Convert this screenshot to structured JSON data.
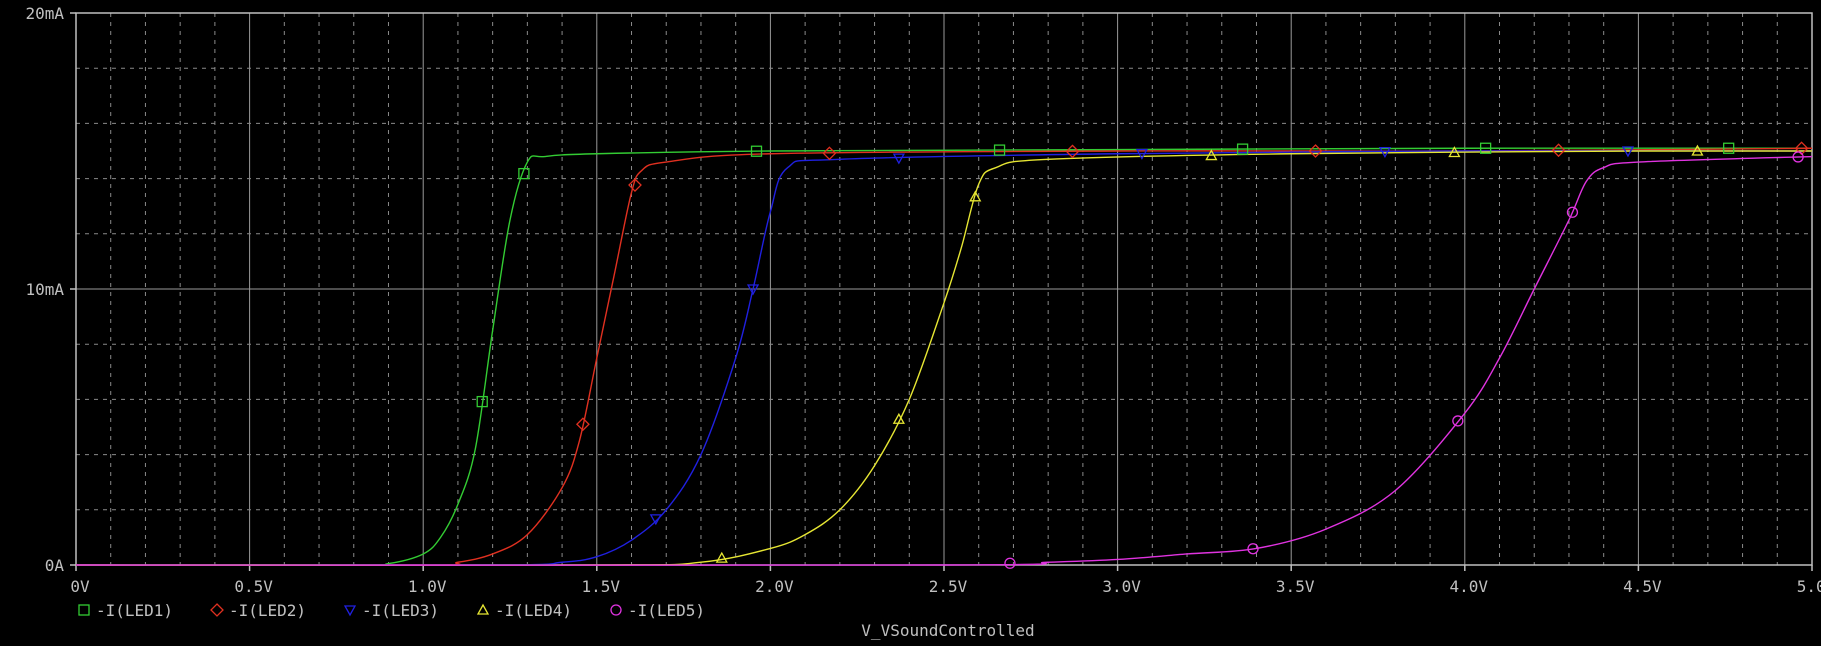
{
  "chart_data": {
    "type": "line",
    "title": "",
    "xlabel": "V_VSoundControlled",
    "ylabel": "",
    "xlim": [
      0,
      5.0
    ],
    "ylim": [
      0,
      20
    ],
    "grid": true,
    "legend_position": "bottom-left",
    "x_ticks": [
      {
        "v": 0,
        "label": "0V"
      },
      {
        "v": 0.5,
        "label": "0.5V"
      },
      {
        "v": 1.0,
        "label": "1.0V"
      },
      {
        "v": 1.5,
        "label": "1.5V"
      },
      {
        "v": 2.0,
        "label": "2.0V"
      },
      {
        "v": 2.5,
        "label": "2.5V"
      },
      {
        "v": 3.0,
        "label": "3.0V"
      },
      {
        "v": 3.5,
        "label": "3.5V"
      },
      {
        "v": 4.0,
        "label": "4.0V"
      },
      {
        "v": 4.5,
        "label": "4.5V"
      },
      {
        "v": 5.0,
        "label": "5.0V"
      }
    ],
    "y_ticks": [
      {
        "v": 0,
        "label": "0A"
      },
      {
        "v": 10,
        "label": "10mA"
      },
      {
        "v": 20,
        "label": "20mA"
      }
    ],
    "series": [
      {
        "name": "-I(LED1)",
        "color": "#33cc33",
        "marker": "square",
        "x": [
          0.0,
          0.8,
          0.9,
          1.0,
          1.05,
          1.1,
          1.15,
          1.2,
          1.25,
          1.3,
          1.35,
          1.5,
          2.0,
          3.0,
          4.0,
          5.0
        ],
        "y": [
          0.0,
          0.0,
          0.05,
          0.4,
          1.0,
          2.2,
          4.2,
          8.5,
          12.5,
          14.6,
          14.8,
          14.9,
          15.0,
          15.05,
          15.1,
          15.1
        ],
        "markers_x": [
          1.17,
          1.29,
          1.96,
          2.66,
          3.36,
          4.06,
          4.76
        ]
      },
      {
        "name": "-I(LED2)",
        "color": "#e03020",
        "marker": "diamond",
        "x": [
          0.0,
          1.0,
          1.1,
          1.2,
          1.3,
          1.4,
          1.45,
          1.5,
          1.55,
          1.6,
          1.63,
          1.7,
          2.0,
          3.0,
          4.0,
          5.0
        ],
        "y": [
          0.0,
          0.0,
          0.1,
          0.4,
          1.1,
          2.8,
          4.5,
          7.5,
          10.5,
          13.5,
          14.3,
          14.6,
          14.9,
          15.0,
          15.0,
          15.1
        ],
        "markers_x": [
          1.46,
          1.61,
          2.17,
          2.87,
          3.57,
          4.27,
          4.97
        ]
      },
      {
        "name": "-I(LED3)",
        "color": "#2020e0",
        "marker": "triangle-down",
        "x": [
          0.0,
          1.2,
          1.4,
          1.5,
          1.6,
          1.7,
          1.8,
          1.9,
          1.95,
          2.0,
          2.05,
          2.2,
          3.0,
          4.0,
          5.0
        ],
        "y": [
          0.0,
          0.0,
          0.1,
          0.3,
          0.9,
          2.0,
          4.0,
          7.5,
          10.0,
          12.8,
          14.4,
          14.7,
          14.9,
          15.0,
          15.0
        ],
        "markers_x": [
          1.67,
          1.95,
          2.37,
          3.07,
          3.77,
          4.47
        ]
      },
      {
        "name": "-I(LED4)",
        "color": "#e6e633",
        "marker": "triangle-up",
        "x": [
          0.0,
          1.5,
          1.8,
          2.0,
          2.1,
          2.2,
          2.3,
          2.4,
          2.5,
          2.55,
          2.6,
          2.65,
          2.8,
          3.5,
          4.5,
          5.0
        ],
        "y": [
          0.0,
          0.0,
          0.1,
          0.6,
          1.1,
          2.0,
          3.6,
          6.0,
          9.5,
          11.5,
          13.8,
          14.4,
          14.7,
          14.9,
          15.0,
          15.0
        ],
        "markers_x": [
          1.86,
          2.37,
          2.59,
          3.27,
          3.97,
          4.67
        ]
      },
      {
        "name": "-I(LED5)",
        "color": "#e033e0",
        "marker": "circle",
        "x": [
          0.0,
          2.5,
          2.8,
          3.0,
          3.2,
          3.4,
          3.6,
          3.8,
          4.0,
          4.1,
          4.2,
          4.3,
          4.35,
          4.4,
          4.5,
          5.0
        ],
        "y": [
          0.0,
          0.0,
          0.1,
          0.2,
          0.4,
          0.6,
          1.3,
          2.7,
          5.5,
          7.5,
          10.0,
          12.5,
          13.9,
          14.4,
          14.6,
          14.8
        ],
        "markers_x": [
          2.69,
          3.39,
          3.98,
          4.31,
          4.96
        ]
      }
    ]
  }
}
